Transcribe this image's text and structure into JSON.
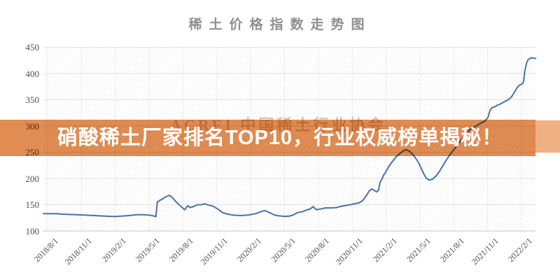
{
  "title": "稀土价格指数走势图",
  "banner": {
    "text": "硝酸稀土厂家排名TOP10，行业权威榜单揭秘！",
    "bg_color": "#e18c52",
    "right_bg_color": "#efb183",
    "text_color": "#ffffff"
  },
  "watermark": "ACREI 中国稀土行业协会",
  "chart_data": {
    "type": "line",
    "title": "稀土价格指数走势图",
    "xlabel": "",
    "ylabel": "",
    "ylim": [
      100,
      450
    ],
    "y_ticks": [
      100,
      150,
      200,
      250,
      300,
      350,
      400,
      450
    ],
    "x_tick_labels": [
      "2018/8/1",
      "2018/11/1",
      "2019/2/1",
      "2019/5/1",
      "2019/8/1",
      "2019/11/1",
      "2020/2/1",
      "2020/5/1",
      "2020/8/1",
      "2020/11/1",
      "2021/2/1",
      "2021/5/1",
      "2021/8/1",
      "2021/11/1",
      "2022/2/1"
    ],
    "x_unit": "quarters since 2018/8/1",
    "grid": true,
    "legend": "none",
    "line_color": "#4a72a6",
    "series": [
      {
        "name": "稀土价格指数",
        "points": [
          [
            -0.12,
            133
          ],
          [
            0.05,
            133
          ],
          [
            0.25,
            133
          ],
          [
            0.45,
            132
          ],
          [
            0.65,
            131.5
          ],
          [
            0.87,
            131
          ],
          [
            1.05,
            130.5
          ],
          [
            1.18,
            130
          ],
          [
            1.35,
            129.5
          ],
          [
            1.49,
            129
          ],
          [
            1.65,
            128.5
          ],
          [
            1.8,
            128
          ],
          [
            2.01,
            127.5
          ],
          [
            2.1,
            128
          ],
          [
            2.21,
            128.5
          ],
          [
            2.42,
            129.5
          ],
          [
            2.63,
            131
          ],
          [
            2.83,
            131
          ],
          [
            2.95,
            130.5
          ],
          [
            3.04,
            130
          ],
          [
            3.14,
            128.5
          ],
          [
            3.2,
            127.5
          ],
          [
            3.24,
            155
          ],
          [
            3.31,
            158
          ],
          [
            3.39,
            161
          ],
          [
            3.52,
            166
          ],
          [
            3.6,
            168
          ],
          [
            3.68,
            164
          ],
          [
            3.76,
            158
          ],
          [
            3.87,
            151
          ],
          [
            3.97,
            145
          ],
          [
            4.05,
            140.5
          ],
          [
            4.14,
            148
          ],
          [
            4.22,
            144.5
          ],
          [
            4.32,
            147
          ],
          [
            4.43,
            150
          ],
          [
            4.55,
            150
          ],
          [
            4.63,
            152
          ],
          [
            4.76,
            149.5
          ],
          [
            4.9,
            147
          ],
          [
            5.05,
            141
          ],
          [
            5.17,
            135
          ],
          [
            5.32,
            132
          ],
          [
            5.52,
            130
          ],
          [
            5.73,
            129.5
          ],
          [
            5.94,
            130.5
          ],
          [
            6.14,
            133
          ],
          [
            6.31,
            137
          ],
          [
            6.41,
            139
          ],
          [
            6.56,
            135
          ],
          [
            6.7,
            130.5
          ],
          [
            6.82,
            129
          ],
          [
            6.97,
            128
          ],
          [
            7.11,
            128
          ],
          [
            7.24,
            130
          ],
          [
            7.38,
            135
          ],
          [
            7.53,
            137
          ],
          [
            7.65,
            140
          ],
          [
            7.76,
            142
          ],
          [
            7.84,
            146.5
          ],
          [
            7.94,
            140.5
          ],
          [
            8.07,
            142
          ],
          [
            8.21,
            144
          ],
          [
            8.36,
            144
          ],
          [
            8.52,
            144.5
          ],
          [
            8.64,
            146.5
          ],
          [
            8.79,
            148.5
          ],
          [
            8.93,
            150
          ],
          [
            9.08,
            152
          ],
          [
            9.2,
            153.5
          ],
          [
            9.31,
            158
          ],
          [
            9.39,
            165
          ],
          [
            9.45,
            171
          ],
          [
            9.51,
            177
          ],
          [
            9.58,
            180
          ],
          [
            9.66,
            177
          ],
          [
            9.72,
            174.5
          ],
          [
            9.78,
            178
          ],
          [
            9.82,
            193
          ],
          [
            9.87,
            198
          ],
          [
            9.93,
            207
          ],
          [
            9.97,
            210
          ],
          [
            10.07,
            222
          ],
          [
            10.18,
            232
          ],
          [
            10.28,
            240
          ],
          [
            10.38,
            246
          ],
          [
            10.49,
            252
          ],
          [
            10.59,
            255
          ],
          [
            10.69,
            252
          ],
          [
            10.8,
            245
          ],
          [
            10.88,
            238
          ],
          [
            10.96,
            230
          ],
          [
            11.06,
            216
          ],
          [
            11.17,
            202
          ],
          [
            11.27,
            197
          ],
          [
            11.37,
            198.5
          ],
          [
            11.48,
            205
          ],
          [
            11.58,
            214
          ],
          [
            11.69,
            226
          ],
          [
            11.79,
            236
          ],
          [
            11.89,
            246
          ],
          [
            12.04,
            258
          ],
          [
            12.18,
            270
          ],
          [
            12.33,
            282
          ],
          [
            12.49,
            294
          ],
          [
            12.66,
            300
          ],
          [
            12.78,
            305
          ],
          [
            12.91,
            309
          ],
          [
            13.01,
            316
          ],
          [
            13.07,
            330
          ],
          [
            13.13,
            335
          ],
          [
            13.22,
            337
          ],
          [
            13.3,
            340
          ],
          [
            13.38,
            342
          ],
          [
            13.46,
            345
          ],
          [
            13.55,
            348
          ],
          [
            13.63,
            351
          ],
          [
            13.71,
            356
          ],
          [
            13.79,
            364
          ],
          [
            13.86,
            372
          ],
          [
            13.92,
            377
          ],
          [
            13.98,
            379
          ],
          [
            14.02,
            380
          ],
          [
            14.06,
            384
          ],
          [
            14.1,
            405
          ],
          [
            14.15,
            420
          ],
          [
            14.19,
            426
          ],
          [
            14.23,
            428
          ],
          [
            14.29,
            430
          ],
          [
            14.35,
            429.5
          ],
          [
            14.42,
            428.5
          ]
        ]
      }
    ]
  }
}
